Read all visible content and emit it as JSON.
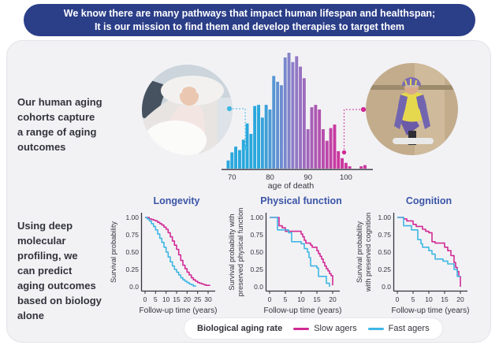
{
  "header": {
    "line1": "We know there are many pathways that impact human lifespan and healthspan;",
    "line2": "It is our mission to find them and develop therapies to target them"
  },
  "sections": {
    "cohorts_text": "Our human aging\ncohorts capture\na range of aging\noutcomes",
    "prediction_text": "Using deep\nmolecular\nprofiling, we\ncan predict\naging outcomes\nbased on biology\nalone"
  },
  "colors": {
    "header_bg": "#2b3e88",
    "accent_blue": "#3b55a5",
    "slow": "#d12a94",
    "fast": "#3fb6e3",
    "hist_left": "#29a8dd",
    "hist_mid": "#8b80c9",
    "hist_right": "#ca379f",
    "text_dark": "#33333d",
    "card_bg": "#f2f2f5"
  },
  "legend": {
    "title": "Biological aging rate",
    "items": [
      {
        "label": "Slow agers",
        "color_key": "slow"
      },
      {
        "label": "Fast agers",
        "color_key": "fast"
      }
    ]
  },
  "chart_data": [
    {
      "id": "age_histogram",
      "type": "bar",
      "title": "",
      "xlabel": "age of death",
      "ylabel": "",
      "x_ticks": [
        70,
        80,
        90,
        100
      ],
      "ages": [
        69,
        70,
        71,
        72,
        73,
        74,
        75,
        76,
        77,
        78,
        79,
        80,
        81,
        82,
        83,
        84,
        85,
        86,
        87,
        88,
        89,
        90,
        91,
        92,
        93,
        94,
        95,
        96,
        97,
        98,
        99,
        100,
        101,
        102,
        103,
        104,
        105
      ],
      "values": [
        0.07,
        0.14,
        0.19,
        0.16,
        0.25,
        0.39,
        0.3,
        0.54,
        0.55,
        0.44,
        0.55,
        0.51,
        0.8,
        0.75,
        0.72,
        0.96,
        1.0,
        0.92,
        0.97,
        0.88,
        0.78,
        0.34,
        0.53,
        0.55,
        0.51,
        0.34,
        0.24,
        0.35,
        0.38,
        0.15,
        0.09,
        0.05,
        0.02,
        0,
        0,
        0.02,
        0.03
      ],
      "annotations": [
        {
          "type": "connector",
          "rate": "fast",
          "age": 73.5,
          "rel_height": 0.18
        },
        {
          "type": "connector",
          "rate": "slow",
          "age": 99.5,
          "rel_height": 0.14
        }
      ]
    },
    {
      "id": "longevity",
      "type": "line",
      "title": "Longevity",
      "xlabel": "Follow-up time (years)",
      "ylabel": "Survival probability",
      "x_ticks": [
        0,
        5,
        10,
        15,
        20,
        25,
        30
      ],
      "y_ticks": [
        "1.00",
        "0.75",
        "0.50",
        "0.25",
        "0.0"
      ],
      "xlim": [
        0,
        31.5
      ],
      "ylim": [
        0,
        1
      ],
      "series": [
        {
          "name": "Slow agers",
          "color_key": "slow",
          "step_points": [
            [
              0,
              1.0
            ],
            [
              2,
              0.98
            ],
            [
              3,
              0.97
            ],
            [
              4,
              0.96
            ],
            [
              5,
              0.95
            ],
            [
              6,
              0.93
            ],
            [
              7,
              0.91
            ],
            [
              8,
              0.89
            ],
            [
              9,
              0.86
            ],
            [
              10,
              0.83
            ],
            [
              11,
              0.78
            ],
            [
              12,
              0.72
            ],
            [
              13,
              0.66
            ],
            [
              14,
              0.6
            ],
            [
              15,
              0.54
            ],
            [
              16,
              0.46
            ],
            [
              17,
              0.38
            ],
            [
              18,
              0.31
            ],
            [
              19,
              0.26
            ],
            [
              20,
              0.21
            ],
            [
              21,
              0.17
            ],
            [
              22,
              0.13
            ],
            [
              23,
              0.1
            ],
            [
              24,
              0.08
            ],
            [
              25,
              0.06
            ],
            [
              26,
              0.05
            ],
            [
              27,
              0.04
            ],
            [
              28,
              0.03
            ],
            [
              29,
              0.02
            ],
            [
              31,
              0.02
            ]
          ]
        },
        {
          "name": "Fast agers",
          "color_key": "fast",
          "step_points": [
            [
              0,
              1.0
            ],
            [
              1,
              0.98
            ],
            [
              2,
              0.95
            ],
            [
              3,
              0.91
            ],
            [
              4,
              0.87
            ],
            [
              5,
              0.82
            ],
            [
              6,
              0.76
            ],
            [
              7,
              0.7
            ],
            [
              8,
              0.64
            ],
            [
              9,
              0.57
            ],
            [
              10,
              0.5
            ],
            [
              11,
              0.43
            ],
            [
              12,
              0.36
            ],
            [
              13,
              0.3
            ],
            [
              14,
              0.25
            ],
            [
              15,
              0.21
            ],
            [
              16,
              0.17
            ],
            [
              17,
              0.13
            ],
            [
              18,
              0.1
            ],
            [
              19,
              0.08
            ],
            [
              20,
              0.06
            ],
            [
              21,
              0.04
            ],
            [
              22,
              0.03
            ],
            [
              23,
              0.01
            ],
            [
              24,
              0.0
            ]
          ]
        }
      ]
    },
    {
      "id": "physical_function",
      "type": "line",
      "title": "Physical function",
      "xlabel": "Follow-up time (years)",
      "ylabel": "Survival probability with\npreserved physical function",
      "x_ticks": [
        0,
        5,
        10,
        15,
        20
      ],
      "y_ticks": [
        "1.00",
        "0.75",
        "0.50",
        "0.25",
        "0.0"
      ],
      "xlim": [
        0,
        21
      ],
      "ylim": [
        0,
        1
      ],
      "series": [
        {
          "name": "Slow agers",
          "color_key": "slow",
          "step_points": [
            [
              0,
              1.0
            ],
            [
              3,
              0.88
            ],
            [
              4,
              0.85
            ],
            [
              5,
              0.8
            ],
            [
              10,
              0.76
            ],
            [
              10.5,
              0.72
            ],
            [
              11,
              0.67
            ],
            [
              11.5,
              0.63
            ],
            [
              13,
              0.6
            ],
            [
              13.5,
              0.57
            ],
            [
              15,
              0.52
            ],
            [
              15.5,
              0.48
            ],
            [
              16,
              0.44
            ],
            [
              16.5,
              0.4
            ],
            [
              17,
              0.35
            ],
            [
              17.5,
              0.3
            ],
            [
              18,
              0.26
            ],
            [
              18.5,
              0.23
            ],
            [
              19,
              0.19
            ],
            [
              19.5,
              0.16
            ],
            [
              20,
              0.02
            ]
          ]
        },
        {
          "name": "Fast agers",
          "color_key": "fast",
          "step_points": [
            [
              0,
              1.0
            ],
            [
              2.5,
              0.82
            ],
            [
              6,
              0.78
            ],
            [
              7,
              0.65
            ],
            [
              10,
              0.62
            ],
            [
              11,
              0.55
            ],
            [
              12,
              0.5
            ],
            [
              12.5,
              0.42
            ],
            [
              13,
              0.3
            ],
            [
              15,
              0.27
            ],
            [
              15.5,
              0.15
            ],
            [
              18,
              0.05
            ],
            [
              19,
              0.0
            ]
          ]
        }
      ]
    },
    {
      "id": "cognition",
      "type": "line",
      "title": "Cognition",
      "xlabel": "Follow-up time (years)",
      "ylabel": "Survival probability\nwith preserved cognition",
      "x_ticks": [
        0,
        5,
        10,
        15,
        20
      ],
      "y_ticks": [
        "1.00",
        "0.75",
        "0.50",
        "0.25",
        "0.0"
      ],
      "xlim": [
        0,
        21
      ],
      "ylim": [
        0,
        1
      ],
      "series": [
        {
          "name": "Slow agers",
          "color_key": "slow",
          "step_points": [
            [
              0,
              1.0
            ],
            [
              2,
              0.98
            ],
            [
              3,
              0.95
            ],
            [
              5,
              0.9
            ],
            [
              6,
              0.87
            ],
            [
              8,
              0.83
            ],
            [
              9,
              0.8
            ],
            [
              10,
              0.78
            ],
            [
              11,
              0.65
            ],
            [
              12,
              0.63
            ],
            [
              15,
              0.57
            ],
            [
              16,
              0.52
            ],
            [
              17,
              0.45
            ],
            [
              18,
              0.35
            ],
            [
              18.5,
              0.28
            ],
            [
              19,
              0.22
            ],
            [
              19.5,
              0.15
            ],
            [
              20,
              0.0
            ]
          ]
        },
        {
          "name": "Fast agers",
          "color_key": "fast",
          "step_points": [
            [
              0,
              1.0
            ],
            [
              2,
              0.88
            ],
            [
              4.5,
              0.82
            ],
            [
              6.5,
              0.68
            ],
            [
              7.5,
              0.62
            ],
            [
              8,
              0.57
            ],
            [
              10,
              0.52
            ],
            [
              11,
              0.47
            ],
            [
              12,
              0.4
            ],
            [
              14.5,
              0.37
            ],
            [
              16,
              0.33
            ],
            [
              18,
              0.25
            ],
            [
              19,
              0.15
            ],
            [
              20,
              0.15
            ]
          ]
        }
      ]
    }
  ]
}
